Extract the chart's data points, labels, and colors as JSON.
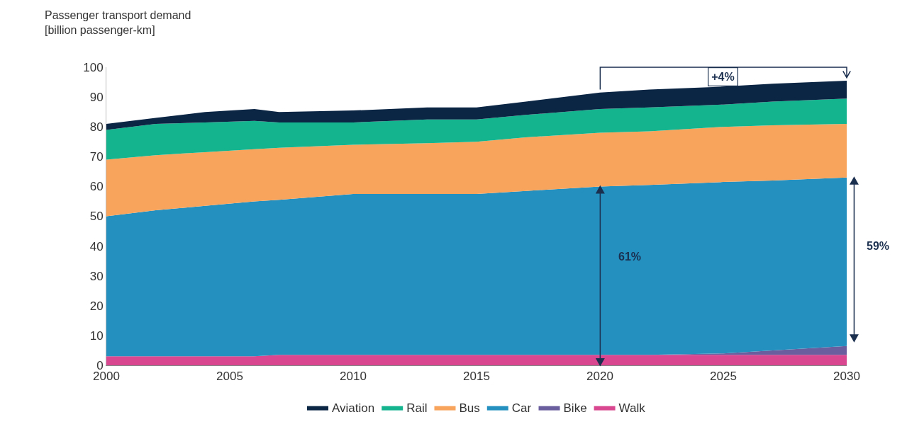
{
  "chart_data": {
    "type": "area",
    "stacked": true,
    "ylabel": "Passenger transport demand\n[billion passenger-km]",
    "x": [
      2000,
      2002,
      2004,
      2006,
      2007,
      2010,
      2013,
      2015,
      2017,
      2020,
      2022,
      2025,
      2027,
      2030
    ],
    "series": [
      {
        "name": "Walk",
        "color": "#d8478f",
        "values": [
          3,
          3,
          3,
          3,
          3.5,
          3.5,
          3.5,
          3.5,
          3.5,
          3.5,
          3.5,
          3.5,
          3.5,
          3.5
        ]
      },
      {
        "name": "Bike",
        "color": "#6b5e9e",
        "values": [
          0,
          0,
          0,
          0,
          0,
          0,
          0,
          0,
          0,
          0,
          0,
          0.5,
          1.5,
          3
        ]
      },
      {
        "name": "Car",
        "color": "#2490c0",
        "values": [
          47,
          49,
          50.5,
          52,
          52,
          54,
          54,
          54,
          55,
          56.5,
          57,
          57.5,
          57,
          56.5
        ]
      },
      {
        "name": "Bus",
        "color": "#f9a45c",
        "values": [
          19,
          18.5,
          18,
          17.5,
          17.5,
          16.5,
          17,
          17.5,
          18,
          18,
          18,
          18.5,
          18.5,
          18
        ]
      },
      {
        "name": "Rail",
        "color": "#14b48f",
        "values": [
          10,
          10.5,
          10,
          9.5,
          8.5,
          7.5,
          8,
          7.5,
          7.5,
          8,
          8,
          7.5,
          8,
          8.5
        ]
      },
      {
        "name": "Aviation",
        "color": "#0b2545",
        "values": [
          2,
          2,
          3.5,
          4,
          3.5,
          4,
          4,
          4,
          4.5,
          5.5,
          6,
          6,
          6,
          6
        ]
      }
    ],
    "xlim": [
      2000,
      2030
    ],
    "xticks": [
      2000,
      2005,
      2010,
      2015,
      2020,
      2025,
      2030
    ],
    "ylim": [
      0,
      100
    ],
    "yticks": [
      0,
      10,
      20,
      30,
      40,
      50,
      60,
      70,
      80,
      90,
      100
    ],
    "grid": false,
    "legend": "bottom",
    "annotations": [
      "+4%",
      "61%",
      "59%"
    ]
  }
}
